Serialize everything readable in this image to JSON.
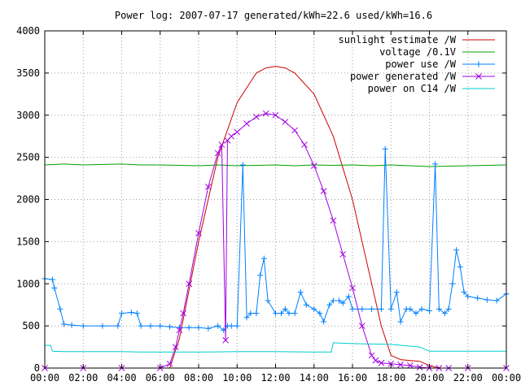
{
  "chart_data": {
    "type": "line",
    "title": "Power log: 2007-07-17 generated/kWh=22.6 used/kWh=16.6",
    "xlabel": "",
    "ylabel": "",
    "x_ticks": [
      "00:00",
      "02:00",
      "04:00",
      "06:00",
      "08:00",
      "10:00",
      "12:00",
      "14:00",
      "16:00",
      "18:00",
      "20:00",
      "22:00",
      "00:00"
    ],
    "y_ticks": [
      "0",
      "500",
      "1000",
      "1500",
      "2000",
      "2500",
      "3000",
      "3500",
      "4000"
    ],
    "xlim": [
      0,
      24
    ],
    "ylim": [
      0,
      4000
    ],
    "grid": true,
    "legend_position": "top-right",
    "series": [
      {
        "name": "sunlight estimate /W",
        "color": "#cc0000",
        "marker": "none",
        "x": [
          6.5,
          7.0,
          8.0,
          9.0,
          10.0,
          11.0,
          11.5,
          12.0,
          12.5,
          13.0,
          14.0,
          15.0,
          16.0,
          17.0,
          17.5,
          18.0,
          18.5,
          19.0,
          19.5,
          20.0,
          20.5
        ],
        "y": [
          0,
          350,
          1500,
          2500,
          3150,
          3500,
          3560,
          3580,
          3560,
          3500,
          3250,
          2750,
          2000,
          1000,
          500,
          150,
          100,
          90,
          80,
          30,
          0
        ]
      },
      {
        "name": "voltage /0.1V",
        "color": "#00a000",
        "marker": "none",
        "x": [
          0,
          1,
          2,
          3,
          4,
          5,
          6,
          7,
          8,
          9,
          10,
          11,
          12,
          13,
          14,
          15,
          16,
          17,
          18,
          19,
          20,
          21,
          22,
          23,
          24
        ],
        "y": [
          2410,
          2420,
          2410,
          2415,
          2420,
          2410,
          2410,
          2405,
          2400,
          2410,
          2400,
          2405,
          2410,
          2400,
          2410,
          2405,
          2410,
          2400,
          2410,
          2400,
          2390,
          2395,
          2400,
          2405,
          2410
        ]
      },
      {
        "name": "power use /W",
        "color": "#0080ff",
        "marker": "plus",
        "x": [
          0,
          0.4,
          0.5,
          0.8,
          1.0,
          1.4,
          2,
          3,
          3.8,
          4.0,
          4.5,
          4.8,
          5.0,
          5.5,
          6,
          6.5,
          7,
          7.5,
          8,
          8.5,
          9,
          9.3,
          9.5,
          9.7,
          10.0,
          10.3,
          10.5,
          10.7,
          11.0,
          11.2,
          11.4,
          11.6,
          12.0,
          12.3,
          12.5,
          12.7,
          13.0,
          13.3,
          13.6,
          14.0,
          14.3,
          14.5,
          14.8,
          15.0,
          15.3,
          15.5,
          15.8,
          16.0,
          16.5,
          17.0,
          17.5,
          17.7,
          18.0,
          18.3,
          18.5,
          18.8,
          19.0,
          19.3,
          19.6,
          20.0,
          20.3,
          20.5,
          20.8,
          21.0,
          21.2,
          21.4,
          21.6,
          21.8,
          22.0,
          22.5,
          23.0,
          23.5,
          24.0
        ],
        "y": [
          1060,
          1050,
          950,
          700,
          520,
          510,
          500,
          500,
          500,
          650,
          660,
          650,
          500,
          500,
          500,
          490,
          480,
          480,
          480,
          470,
          500,
          450,
          500,
          500,
          500,
          2410,
          600,
          650,
          650,
          1100,
          1300,
          800,
          650,
          650,
          700,
          650,
          650,
          900,
          750,
          700,
          650,
          550,
          750,
          800,
          800,
          770,
          850,
          700,
          700,
          700,
          700,
          2600,
          700,
          900,
          550,
          700,
          700,
          650,
          700,
          680,
          2420,
          700,
          650,
          700,
          1000,
          1400,
          1200,
          900,
          850,
          830,
          810,
          800,
          880
        ]
      },
      {
        "name": "power generated /W",
        "color": "#a000e0",
        "marker": "x",
        "x": [
          0,
          2,
          4,
          6,
          6.5,
          6.8,
          7.0,
          7.2,
          7.5,
          8.0,
          8.5,
          9.0,
          9.2,
          9.4,
          9.5,
          9.7,
          10.0,
          10.5,
          11.0,
          11.5,
          12.0,
          12.5,
          13.0,
          13.5,
          14.0,
          14.5,
          15.0,
          15.5,
          16.0,
          16.5,
          17.0,
          17.2,
          17.5,
          18.0,
          18.5,
          19.0,
          19.5,
          20.0,
          20.5,
          21.0,
          22.0,
          24.0
        ],
        "y": [
          0,
          0,
          0,
          0,
          50,
          250,
          450,
          650,
          1000,
          1600,
          2150,
          2550,
          2650,
          330,
          2700,
          2750,
          2800,
          2900,
          2980,
          3020,
          3000,
          2920,
          2820,
          2650,
          2400,
          2100,
          1750,
          1350,
          950,
          500,
          150,
          90,
          60,
          50,
          40,
          30,
          10,
          0,
          0,
          0,
          0,
          0
        ]
      },
      {
        "name": "power on C14 /W",
        "color": "#00cccc",
        "marker": "none",
        "x": [
          0,
          0.3,
          0.4,
          1,
          2,
          4,
          5,
          6,
          8,
          10,
          12,
          14,
          14.9,
          15.0,
          16,
          18,
          19.5,
          20,
          21,
          22,
          24
        ],
        "y": [
          270,
          270,
          200,
          195,
          195,
          195,
          190,
          190,
          190,
          195,
          195,
          190,
          190,
          300,
          290,
          280,
          250,
          200,
          200,
          200,
          200
        ]
      }
    ]
  }
}
